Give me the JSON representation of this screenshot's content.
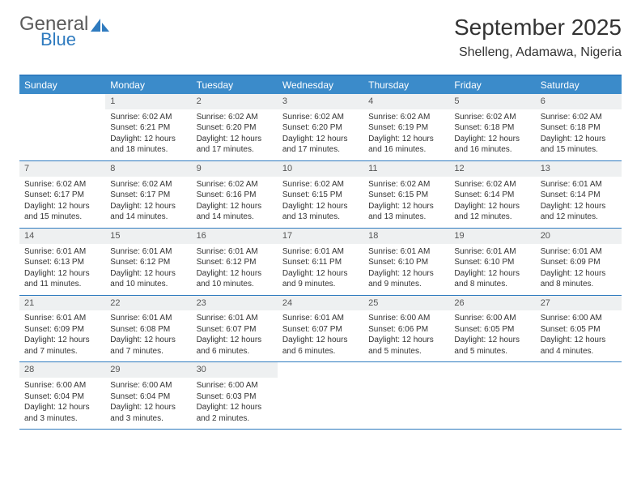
{
  "brand": {
    "word1": "General",
    "word2": "Blue",
    "logo_fill": "#2f7bbf"
  },
  "header": {
    "title": "September 2025",
    "location": "Shelleng, Adamawa, Nigeria"
  },
  "colors": {
    "header_bg": "#3b8bca",
    "border": "#2f7bbf",
    "daynum_bg": "#eef0f1",
    "text": "#333333",
    "white": "#ffffff"
  },
  "day_labels": [
    "Sunday",
    "Monday",
    "Tuesday",
    "Wednesday",
    "Thursday",
    "Friday",
    "Saturday"
  ],
  "weeks": [
    [
      {
        "n": "",
        "sr": "",
        "ss": "",
        "dl": ""
      },
      {
        "n": "1",
        "sr": "Sunrise: 6:02 AM",
        "ss": "Sunset: 6:21 PM",
        "dl": "Daylight: 12 hours and 18 minutes."
      },
      {
        "n": "2",
        "sr": "Sunrise: 6:02 AM",
        "ss": "Sunset: 6:20 PM",
        "dl": "Daylight: 12 hours and 17 minutes."
      },
      {
        "n": "3",
        "sr": "Sunrise: 6:02 AM",
        "ss": "Sunset: 6:20 PM",
        "dl": "Daylight: 12 hours and 17 minutes."
      },
      {
        "n": "4",
        "sr": "Sunrise: 6:02 AM",
        "ss": "Sunset: 6:19 PM",
        "dl": "Daylight: 12 hours and 16 minutes."
      },
      {
        "n": "5",
        "sr": "Sunrise: 6:02 AM",
        "ss": "Sunset: 6:18 PM",
        "dl": "Daylight: 12 hours and 16 minutes."
      },
      {
        "n": "6",
        "sr": "Sunrise: 6:02 AM",
        "ss": "Sunset: 6:18 PM",
        "dl": "Daylight: 12 hours and 15 minutes."
      }
    ],
    [
      {
        "n": "7",
        "sr": "Sunrise: 6:02 AM",
        "ss": "Sunset: 6:17 PM",
        "dl": "Daylight: 12 hours and 15 minutes."
      },
      {
        "n": "8",
        "sr": "Sunrise: 6:02 AM",
        "ss": "Sunset: 6:17 PM",
        "dl": "Daylight: 12 hours and 14 minutes."
      },
      {
        "n": "9",
        "sr": "Sunrise: 6:02 AM",
        "ss": "Sunset: 6:16 PM",
        "dl": "Daylight: 12 hours and 14 minutes."
      },
      {
        "n": "10",
        "sr": "Sunrise: 6:02 AM",
        "ss": "Sunset: 6:15 PM",
        "dl": "Daylight: 12 hours and 13 minutes."
      },
      {
        "n": "11",
        "sr": "Sunrise: 6:02 AM",
        "ss": "Sunset: 6:15 PM",
        "dl": "Daylight: 12 hours and 13 minutes."
      },
      {
        "n": "12",
        "sr": "Sunrise: 6:02 AM",
        "ss": "Sunset: 6:14 PM",
        "dl": "Daylight: 12 hours and 12 minutes."
      },
      {
        "n": "13",
        "sr": "Sunrise: 6:01 AM",
        "ss": "Sunset: 6:14 PM",
        "dl": "Daylight: 12 hours and 12 minutes."
      }
    ],
    [
      {
        "n": "14",
        "sr": "Sunrise: 6:01 AM",
        "ss": "Sunset: 6:13 PM",
        "dl": "Daylight: 12 hours and 11 minutes."
      },
      {
        "n": "15",
        "sr": "Sunrise: 6:01 AM",
        "ss": "Sunset: 6:12 PM",
        "dl": "Daylight: 12 hours and 10 minutes."
      },
      {
        "n": "16",
        "sr": "Sunrise: 6:01 AM",
        "ss": "Sunset: 6:12 PM",
        "dl": "Daylight: 12 hours and 10 minutes."
      },
      {
        "n": "17",
        "sr": "Sunrise: 6:01 AM",
        "ss": "Sunset: 6:11 PM",
        "dl": "Daylight: 12 hours and 9 minutes."
      },
      {
        "n": "18",
        "sr": "Sunrise: 6:01 AM",
        "ss": "Sunset: 6:10 PM",
        "dl": "Daylight: 12 hours and 9 minutes."
      },
      {
        "n": "19",
        "sr": "Sunrise: 6:01 AM",
        "ss": "Sunset: 6:10 PM",
        "dl": "Daylight: 12 hours and 8 minutes."
      },
      {
        "n": "20",
        "sr": "Sunrise: 6:01 AM",
        "ss": "Sunset: 6:09 PM",
        "dl": "Daylight: 12 hours and 8 minutes."
      }
    ],
    [
      {
        "n": "21",
        "sr": "Sunrise: 6:01 AM",
        "ss": "Sunset: 6:09 PM",
        "dl": "Daylight: 12 hours and 7 minutes."
      },
      {
        "n": "22",
        "sr": "Sunrise: 6:01 AM",
        "ss": "Sunset: 6:08 PM",
        "dl": "Daylight: 12 hours and 7 minutes."
      },
      {
        "n": "23",
        "sr": "Sunrise: 6:01 AM",
        "ss": "Sunset: 6:07 PM",
        "dl": "Daylight: 12 hours and 6 minutes."
      },
      {
        "n": "24",
        "sr": "Sunrise: 6:01 AM",
        "ss": "Sunset: 6:07 PM",
        "dl": "Daylight: 12 hours and 6 minutes."
      },
      {
        "n": "25",
        "sr": "Sunrise: 6:00 AM",
        "ss": "Sunset: 6:06 PM",
        "dl": "Daylight: 12 hours and 5 minutes."
      },
      {
        "n": "26",
        "sr": "Sunrise: 6:00 AM",
        "ss": "Sunset: 6:05 PM",
        "dl": "Daylight: 12 hours and 5 minutes."
      },
      {
        "n": "27",
        "sr": "Sunrise: 6:00 AM",
        "ss": "Sunset: 6:05 PM",
        "dl": "Daylight: 12 hours and 4 minutes."
      }
    ],
    [
      {
        "n": "28",
        "sr": "Sunrise: 6:00 AM",
        "ss": "Sunset: 6:04 PM",
        "dl": "Daylight: 12 hours and 3 minutes."
      },
      {
        "n": "29",
        "sr": "Sunrise: 6:00 AM",
        "ss": "Sunset: 6:04 PM",
        "dl": "Daylight: 12 hours and 3 minutes."
      },
      {
        "n": "30",
        "sr": "Sunrise: 6:00 AM",
        "ss": "Sunset: 6:03 PM",
        "dl": "Daylight: 12 hours and 2 minutes."
      },
      {
        "n": "",
        "sr": "",
        "ss": "",
        "dl": ""
      },
      {
        "n": "",
        "sr": "",
        "ss": "",
        "dl": ""
      },
      {
        "n": "",
        "sr": "",
        "ss": "",
        "dl": ""
      },
      {
        "n": "",
        "sr": "",
        "ss": "",
        "dl": ""
      }
    ]
  ]
}
